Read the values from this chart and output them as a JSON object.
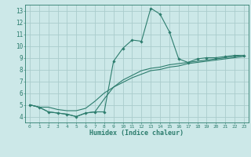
{
  "xlabel": "Humidex (Indice chaleur)",
  "ylabel": "",
  "xlim": [
    -0.5,
    23.5
  ],
  "ylim": [
    3.5,
    13.5
  ],
  "xticks": [
    0,
    1,
    2,
    3,
    4,
    5,
    6,
    7,
    8,
    9,
    10,
    11,
    12,
    13,
    14,
    15,
    16,
    17,
    18,
    19,
    20,
    21,
    22,
    23
  ],
  "yticks": [
    4,
    5,
    6,
    7,
    8,
    9,
    10,
    11,
    12,
    13
  ],
  "background_color": "#cce8e8",
  "grid_color": "#aacccc",
  "line_color": "#2d7d6e",
  "series1_x": [
    0,
    1,
    2,
    3,
    4,
    5,
    6,
    7,
    8,
    9,
    10,
    11,
    12,
    13,
    14,
    15,
    16,
    17,
    18,
    19,
    20,
    21,
    22,
    23
  ],
  "series1_y": [
    5.0,
    4.8,
    4.4,
    4.3,
    4.2,
    4.0,
    4.3,
    4.4,
    4.4,
    8.7,
    9.8,
    10.5,
    10.4,
    13.2,
    12.7,
    11.2,
    8.9,
    8.6,
    8.9,
    9.0,
    9.0,
    9.1,
    9.2,
    9.2
  ],
  "series2_x": [
    0,
    1,
    2,
    3,
    4,
    5,
    6,
    7,
    8,
    9,
    10,
    11,
    12,
    13,
    14,
    15,
    16,
    17,
    18,
    19,
    20,
    21,
    22,
    23
  ],
  "series2_y": [
    5.0,
    4.8,
    4.8,
    4.6,
    4.5,
    4.5,
    4.7,
    5.3,
    6.0,
    6.5,
    6.9,
    7.3,
    7.6,
    7.9,
    8.0,
    8.2,
    8.3,
    8.5,
    8.6,
    8.7,
    8.8,
    8.9,
    9.0,
    9.1
  ],
  "series3_x": [
    0,
    1,
    2,
    3,
    4,
    5,
    6,
    7,
    8,
    9,
    10,
    11,
    12,
    13,
    14,
    15,
    16,
    17,
    18,
    19,
    20,
    21,
    22,
    23
  ],
  "series3_y": [
    5.0,
    4.8,
    4.4,
    4.3,
    4.2,
    4.0,
    4.3,
    4.4,
    5.5,
    6.5,
    7.1,
    7.5,
    7.9,
    8.1,
    8.2,
    8.4,
    8.5,
    8.6,
    8.7,
    8.8,
    8.9,
    9.0,
    9.1,
    9.2
  ]
}
